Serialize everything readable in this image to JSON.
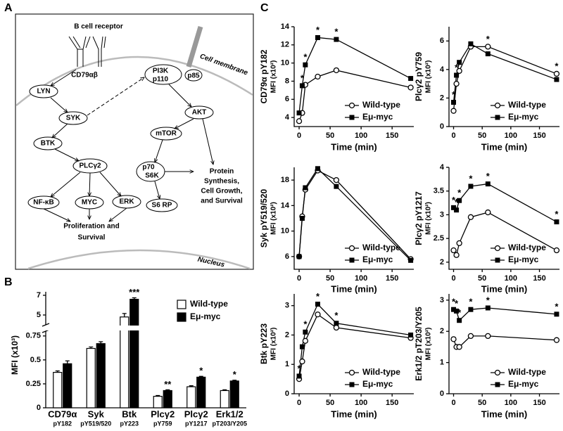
{
  "panel_labels": [
    "A",
    "B",
    "C"
  ],
  "diagram": {
    "receptor": "B cell receptor",
    "membrane": "Cell membrane",
    "nucleus": "Nucleus",
    "nodes": [
      "CD79αβ",
      "LYN",
      "SYK",
      "BTK",
      "PLCγ2",
      "NF-κB",
      "MYC",
      "ERK",
      "PI3K",
      "p110",
      "p85",
      "AKT",
      "mTOR",
      "p70",
      "S6K",
      "S6 RP"
    ],
    "proliferation": [
      "Proliferation and",
      "Survival"
    ],
    "protein": [
      "Protein",
      "Synthesis,",
      "Cell Growth,",
      "and Survival"
    ]
  },
  "chart_data": [
    {
      "type": "bar",
      "ylabel": "MFI (x10³)",
      "categories": [
        "CD79α",
        "Syk",
        "Btk",
        "Plcγ2",
        "Plcγ2",
        "Erk1/2"
      ],
      "category_sublabels": [
        "pY182",
        "pY519/520",
        "pY223",
        "pY759",
        "pY1217",
        "pT203/Y205"
      ],
      "series": [
        {
          "name": "Wild-type",
          "color": "#ffffff",
          "values": [
            0.37,
            0.62,
            4.8,
            0.12,
            0.22,
            0.18
          ],
          "errors": [
            0.015,
            0.015,
            0.35,
            0.008,
            0.01,
            0.008
          ]
        },
        {
          "name": "Eμ-myc",
          "color": "#000000",
          "values": [
            0.46,
            0.67,
            6.6,
            0.18,
            0.32,
            0.28
          ],
          "errors": [
            0.03,
            0.02,
            0.15,
            0.008,
            0.008,
            0.008
          ]
        }
      ],
      "significance": [
        null,
        null,
        "***",
        "**",
        "*",
        "*"
      ],
      "ylim": [
        0,
        7
      ],
      "axis_break": [
        0.8,
        4
      ],
      "yticks": [
        0,
        0.25,
        0.5,
        0.75,
        5,
        7
      ],
      "legend": "upper right"
    },
    {
      "type": "line",
      "ylabel": "CD79α pY182",
      "ylabel2": "MFI (x10²)",
      "xlabel": "Time (min)",
      "x": [
        0,
        5,
        10,
        30,
        60,
        180
      ],
      "xlim": [
        -8,
        185
      ],
      "xticks": [
        0,
        50,
        100,
        150
      ],
      "ylim": [
        3,
        14
      ],
      "yticks": [
        4,
        6,
        8,
        10,
        12,
        14
      ],
      "series": [
        {
          "name": "Wild-type",
          "color": "#000000",
          "marker": "circle-open",
          "values": [
            3.6,
            4.5,
            7.6,
            8.5,
            9.2,
            7.3
          ]
        },
        {
          "name": "Eμ-myc",
          "color": "#000000",
          "marker": "square",
          "values": [
            4.5,
            7.5,
            9.8,
            12.8,
            12.6,
            8.3
          ]
        }
      ],
      "annotations": [
        {
          "x": 5,
          "text": "*"
        },
        {
          "x": 10,
          "text": "*"
        },
        {
          "x": 30,
          "text": "*"
        },
        {
          "x": 60,
          "text": "*"
        }
      ],
      "legend": "lower right"
    },
    {
      "type": "line",
      "ylabel": "Plcγ2 pY759",
      "ylabel2": "MFI (x10²)",
      "xlabel": "Time (min)",
      "x": [
        0,
        5,
        10,
        30,
        60,
        180
      ],
      "xlim": [
        -8,
        185
      ],
      "xticks": [
        0,
        50,
        100,
        150
      ],
      "ylim": [
        0,
        7
      ],
      "yticks": [
        0,
        2,
        4,
        6
      ],
      "series": [
        {
          "name": "Wild-type",
          "color": "#000000",
          "marker": "circle-open",
          "values": [
            1.1,
            3.0,
            3.9,
            5.6,
            5.6,
            3.7
          ]
        },
        {
          "name": "Eμ-myc",
          "color": "#000000",
          "marker": "square",
          "values": [
            1.7,
            3.6,
            4.5,
            5.8,
            5.1,
            3.3
          ]
        }
      ],
      "annotations": [
        {
          "x": 0,
          "text": "*"
        },
        {
          "x": 5,
          "text": "*"
        },
        {
          "x": 60,
          "text": "*"
        },
        {
          "x": 180,
          "text": "*"
        }
      ],
      "legend": "lower right"
    },
    {
      "type": "line",
      "ylabel": "Syk pY519/520",
      "ylabel2": "MFI (x10²)",
      "xlabel": "Time (min)",
      "x": [
        0,
        5,
        10,
        30,
        60,
        180
      ],
      "xlim": [
        -8,
        185
      ],
      "xticks": [
        0,
        50,
        100,
        150
      ],
      "ylim": [
        4,
        20
      ],
      "yticks": [
        6,
        10,
        14,
        18
      ],
      "series": [
        {
          "name": "Wild-type",
          "color": "#000000",
          "marker": "circle-open",
          "values": [
            6.0,
            12.3,
            16.5,
            19.5,
            18.0,
            5.6
          ]
        },
        {
          "name": "Eμ-myc",
          "color": "#000000",
          "marker": "square",
          "values": [
            6.0,
            12.0,
            16.8,
            19.8,
            17.0,
            5.4
          ]
        }
      ],
      "legend": "lower right"
    },
    {
      "type": "line",
      "ylabel": "Plcγ2 pY1217",
      "ylabel2": "MFI (x10²)",
      "xlabel": "Time (min)",
      "x": [
        0,
        5,
        10,
        30,
        60,
        180
      ],
      "xlim": [
        -8,
        185
      ],
      "xticks": [
        0,
        50,
        100,
        150
      ],
      "ylim": [
        1.85,
        4
      ],
      "yticks": [
        2,
        2.5,
        3,
        3.5,
        4
      ],
      "series": [
        {
          "name": "Wild-type",
          "color": "#000000",
          "marker": "circle-open",
          "values": [
            2.25,
            2.15,
            2.4,
            2.95,
            3.05,
            2.25
          ]
        },
        {
          "name": "Eμ-myc",
          "color": "#000000",
          "marker": "square",
          "values": [
            3.15,
            3.1,
            3.3,
            3.6,
            3.65,
            2.85
          ]
        }
      ],
      "annotations": [
        {
          "x": 0,
          "text": "*"
        },
        {
          "x": 5,
          "text": "*"
        },
        {
          "x": 10,
          "text": "*"
        },
        {
          "x": 30,
          "text": "*"
        },
        {
          "x": 60,
          "text": "*"
        },
        {
          "x": 180,
          "text": "*"
        }
      ],
      "legend": "lower right"
    },
    {
      "type": "line",
      "ylabel": "Btk pY223",
      "ylabel2": "MFI (x10²)",
      "xlabel": "Time (min)",
      "x": [
        0,
        5,
        10,
        30,
        60,
        180
      ],
      "xlim": [
        -8,
        185
      ],
      "xticks": [
        0,
        50,
        100,
        150
      ],
      "ylim": [
        0,
        3.4
      ],
      "yticks": [
        0,
        1,
        2,
        3
      ],
      "series": [
        {
          "name": "Wild-type",
          "color": "#000000",
          "marker": "circle-open",
          "values": [
            0.5,
            1.1,
            1.8,
            2.7,
            2.25,
            1.9
          ]
        },
        {
          "name": "Eμ-myc",
          "color": "#000000",
          "marker": "square",
          "values": [
            0.6,
            1.6,
            2.1,
            3.05,
            2.4,
            2.0
          ]
        }
      ],
      "annotations": [
        {
          "x": 0,
          "text": "*"
        },
        {
          "x": 10,
          "text": "*"
        },
        {
          "x": 30,
          "text": "*"
        },
        {
          "x": 60,
          "text": "*"
        }
      ],
      "legend": "lower right"
    },
    {
      "type": "line",
      "ylabel": "Erk1/2 pT203/Y205",
      "ylabel2": "MFI (x10²)",
      "xlabel": "Time (min)",
      "x": [
        0,
        5,
        10,
        30,
        60,
        180
      ],
      "xlim": [
        -8,
        185
      ],
      "xticks": [
        0,
        50,
        100,
        150
      ],
      "ylim": [
        0,
        3.2
      ],
      "yticks": [
        0,
        1,
        2,
        3
      ],
      "series": [
        {
          "name": "Wild-type",
          "color": "#000000",
          "marker": "circle-open",
          "values": [
            1.75,
            1.5,
            1.5,
            1.85,
            1.85,
            1.72
          ]
        },
        {
          "name": "Eμ-myc",
          "color": "#000000",
          "marker": "square",
          "values": [
            2.7,
            2.65,
            2.35,
            2.7,
            2.75,
            2.55
          ]
        }
      ],
      "annotations": [
        {
          "x": 0,
          "text": "*"
        },
        {
          "x": 5,
          "text": "*"
        },
        {
          "x": 10,
          "text": "*"
        },
        {
          "x": 30,
          "text": "*"
        },
        {
          "x": 60,
          "text": "*"
        },
        {
          "x": 180,
          "text": "*"
        }
      ],
      "legend": "lower right"
    }
  ]
}
